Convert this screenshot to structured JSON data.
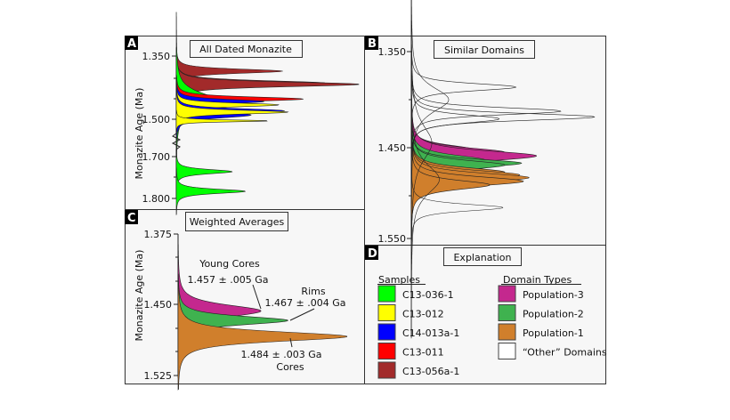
{
  "chart_data": [
    {
      "panel": "A",
      "type": "area",
      "title": "All Dated Monazite",
      "ylabel": "Monazite Age (Ma)",
      "yticks": [
        "1.350",
        "1.500",
        "1.700",
        "1.800"
      ],
      "axis_break": [
        1.5,
        1.7
      ],
      "orientation": "horizontal-density",
      "peaks": [
        {
          "sample": "C13-056a-1",
          "age": 1.386,
          "rel": 0.57,
          "sigma": 0.008
        },
        {
          "sample": "C13-056a-1",
          "age": 1.414,
          "rel": 0.8,
          "sigma": 0.009
        },
        {
          "sample": "C13-056a-1",
          "age": 1.417,
          "rel": 0.98,
          "sigma": 0.009
        },
        {
          "sample": "C13-036-1",
          "age": 1.456,
          "rel": 0.22,
          "sigma": 0.03
        },
        {
          "sample": "C13-011",
          "age": 1.452,
          "rel": 0.68,
          "sigma": 0.008
        },
        {
          "sample": "C14-013a-1",
          "age": 1.458,
          "rel": 0.47,
          "sigma": 0.008
        },
        {
          "sample": "C13-012",
          "age": 1.466,
          "rel": 0.55,
          "sigma": 0.007
        },
        {
          "sample": "C14-013a-1",
          "age": 1.49,
          "rel": 0.4,
          "sigma": 0.012
        },
        {
          "sample": "C14-013a-1",
          "age": 1.48,
          "rel": 0.58,
          "sigma": 0.008
        },
        {
          "sample": "C13-012",
          "age": 1.483,
          "rel": 0.6,
          "sigma": 0.007
        },
        {
          "sample": "C13-012",
          "age": 1.509,
          "rel": 0.5,
          "sigma": 0.008
        },
        {
          "sample": "C13-036-1",
          "age": 1.736,
          "rel": 0.3,
          "sigma": 0.008
        },
        {
          "sample": "C13-036-1",
          "age": 1.783,
          "rel": 0.37,
          "sigma": 0.008
        }
      ]
    },
    {
      "panel": "B",
      "type": "area",
      "title": "Similar Domains",
      "yticks": [
        "1.350",
        "1.450",
        "1.550"
      ],
      "orientation": "horizontal-density",
      "peaks": [
        {
          "domain": "Population-3",
          "age": 1.452,
          "rel": 0.33,
          "sigma": 0.008
        },
        {
          "domain": "Population-3",
          "age": 1.455,
          "rel": 0.5,
          "sigma": 0.008
        },
        {
          "domain": "Population-3",
          "age": 1.459,
          "rel": 0.67,
          "sigma": 0.009
        },
        {
          "domain": "Population-2",
          "age": 1.464,
          "rel": 0.4,
          "sigma": 0.009
        },
        {
          "domain": "Population-2",
          "age": 1.467,
          "rel": 0.59,
          "sigma": 0.007
        },
        {
          "domain": "Population-2",
          "age": 1.469,
          "rel": 0.5,
          "sigma": 0.008
        },
        {
          "domain": "Population-1",
          "age": 1.477,
          "rel": 0.5,
          "sigma": 0.008
        },
        {
          "domain": "Population-1",
          "age": 1.48,
          "rel": 0.58,
          "sigma": 0.008
        },
        {
          "domain": "Population-1",
          "age": 1.483,
          "rel": 0.63,
          "sigma": 0.008
        },
        {
          "domain": "Population-1",
          "age": 1.487,
          "rel": 0.6,
          "sigma": 0.008
        },
        {
          "domain": "Population-1",
          "age": 1.491,
          "rel": 0.42,
          "sigma": 0.008
        },
        {
          "domain": "Other",
          "age": 1.387,
          "rel": 0.56,
          "sigma": 0.006
        },
        {
          "domain": "Other",
          "age": 1.4,
          "rel": 0.2,
          "sigma": 0.02
        },
        {
          "domain": "Other",
          "age": 1.412,
          "rel": 0.8,
          "sigma": 0.006
        },
        {
          "domain": "Other",
          "age": 1.418,
          "rel": 0.98,
          "sigma": 0.006
        },
        {
          "domain": "Other",
          "age": 1.42,
          "rel": 0.47,
          "sigma": 0.007
        },
        {
          "domain": "Other",
          "age": 1.445,
          "rel": 0.11,
          "sigma": 0.03
        },
        {
          "domain": "Other",
          "age": 1.485,
          "rel": 0.15,
          "sigma": 0.025
        },
        {
          "domain": "Other",
          "age": 1.516,
          "rel": 0.49,
          "sigma": 0.006
        }
      ]
    },
    {
      "panel": "C",
      "type": "area",
      "title": "Weighted Averages",
      "ylabel": "Monazite Age (Ma)",
      "yticks": [
        "1.375",
        "1.450",
        "1.525"
      ],
      "orientation": "horizontal-density",
      "peaks": [
        {
          "domain": "Population-3",
          "age": 1.457,
          "rel": 0.49,
          "sigma": 0.01
        },
        {
          "domain": "Population-2",
          "age": 1.467,
          "rel": 0.65,
          "sigma": 0.007
        },
        {
          "domain": "Population-1",
          "age": 1.484,
          "rel": 1.0,
          "sigma": 0.008
        }
      ],
      "annotations": {
        "young_cores_name": "Young Cores",
        "young_cores_value": "1.457 ± .005 Ga",
        "rims_name": "Rims",
        "rims_value": "1.467 ± .004 Ga",
        "cores_value": "1.484 ± .003 Ga",
        "cores_name": "Cores"
      }
    }
  ],
  "panels": {
    "a": "A",
    "b": "B",
    "c": "C",
    "d": "D"
  },
  "legend": {
    "title": "Explanation",
    "samples_heading": "Samples",
    "domains_heading": "Domain Types",
    "samples": [
      {
        "label": "C13-036-1",
        "color": "#00ff00"
      },
      {
        "label": "C13-012",
        "color": "#ffff00"
      },
      {
        "label": "C14-013a-1",
        "color": "#0000ff"
      },
      {
        "label": "C13-011",
        "color": "#ff0000"
      },
      {
        "label": "C13-056a-1",
        "color": "#a22a2a"
      }
    ],
    "domains": [
      {
        "label": "Population-3",
        "color": "#c4288e"
      },
      {
        "label": "Population-2",
        "color": "#3fb24f"
      },
      {
        "label": "Population-1",
        "color": "#d07f2c"
      },
      {
        "label": "“Other” Domains",
        "color": "#ffffff"
      }
    ]
  }
}
